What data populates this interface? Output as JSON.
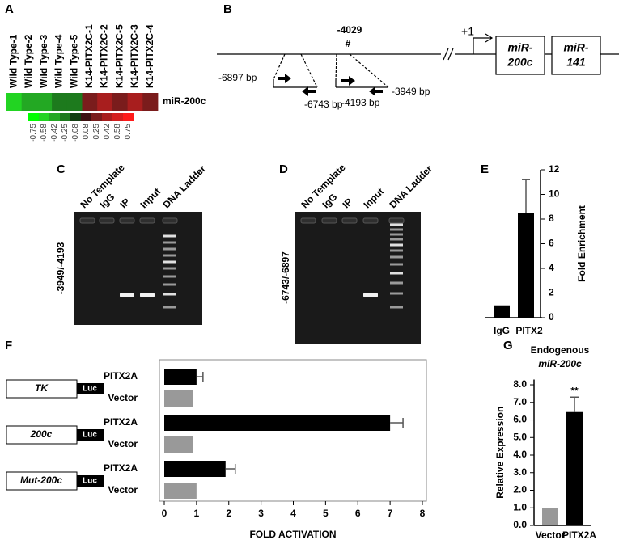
{
  "panel_labels": [
    "A",
    "B",
    "C",
    "D",
    "E",
    "F",
    "G"
  ],
  "diagram": {
    "site_label": "-4029",
    "site_marker": "#",
    "tss": "+1",
    "genes": [
      [
        "miR-",
        "200c"
      ],
      [
        "miR-",
        "141"
      ]
    ],
    "primers": [
      "-6897 bp",
      "-6743 bp",
      "-4193 bp",
      "-3949 bp"
    ]
  },
  "gels": [
    {
      "lanes": [
        "No Template",
        "IgG",
        "IP",
        "Input",
        "DNA Ladder"
      ],
      "primer_label": "-3949/-4193"
    },
    {
      "lanes": [
        "No Template",
        "IgG",
        "IP",
        "Input",
        "DNA Ladder"
      ],
      "primer_label": "-6743/-6897"
    }
  ],
  "chart_data": [
    {
      "type": "heatmap",
      "columns": [
        "Wild Type-1",
        "Wild Type-2",
        "Wild Type-3",
        "Wild Type-4",
        "Wild Type-5",
        "K14-PITX2C-1",
        "K14-PITX2C-2",
        "K14-PITX2C-5",
        "K14-PITX2C-3",
        "K14-PITX2C-4"
      ],
      "row_label": "miR-200c",
      "values": [
        -0.5,
        -0.42,
        -0.42,
        -0.3,
        -0.25,
        0.3,
        0.42,
        0.3,
        0.42,
        0.25
      ],
      "colorbar_ticks": [
        -0.75,
        -0.58,
        -0.42,
        -0.25,
        -0.08,
        0.08,
        0.25,
        0.42,
        0.58,
        0.75
      ],
      "colorscale": [
        "#00ff00",
        "#22d422",
        "#23a823",
        "#1d7a1d",
        "#113d11",
        "#3d1111",
        "#7a1c1c",
        "#a81e1e",
        "#d41e1e",
        "#ff1a1a"
      ]
    },
    {
      "type": "bar",
      "categories": [
        "IgG",
        "PITX2"
      ],
      "values": [
        1,
        8.5
      ],
      "errors": [
        null,
        2.7
      ],
      "colors": [
        "#000000",
        "#000000"
      ],
      "ylabel": "Fold Enrichment",
      "yaxis_side": "right",
      "ylim": [
        0,
        12
      ],
      "yticks": [
        0,
        2,
        4,
        6,
        8,
        10,
        12
      ]
    },
    {
      "type": "barh",
      "categories": [
        "PITX2A",
        "Vector",
        "PITX2A",
        "Vector",
        "PITX2A",
        "Vector"
      ],
      "values": [
        1.0,
        0.9,
        7.0,
        0.9,
        1.9,
        1.0
      ],
      "errors": [
        0.2,
        null,
        0.4,
        null,
        0.3,
        null
      ],
      "colors": [
        "#000000",
        "#999999",
        "#000000",
        "#999999",
        "#000000",
        "#999999"
      ],
      "constructs": [
        {
          "name": "TK",
          "reporter": "Luc"
        },
        {
          "name": "200c",
          "reporter": "Luc"
        },
        {
          "name": "Mut-200c",
          "reporter": "Luc"
        }
      ],
      "xlabel": "FOLD ACTIVATION",
      "xlim": [
        0,
        8
      ],
      "xticks": [
        0,
        1,
        2,
        3,
        4,
        5,
        6,
        7,
        8
      ]
    },
    {
      "type": "bar",
      "title": "Endogenous",
      "subtitle": "miR-200c",
      "categories": [
        "Vector",
        "PITX2A"
      ],
      "values": [
        1.0,
        6.45
      ],
      "errors": [
        null,
        0.85
      ],
      "colors": [
        "#999999",
        "#000000"
      ],
      "annotation": "**",
      "ylabel": "Relative Expression",
      "yaxis_side": "left",
      "ylim": [
        0,
        8.3
      ],
      "yticks": [
        {
          "value": 0,
          "label": "0.0"
        },
        {
          "value": 1,
          "label": "1.0"
        },
        {
          "value": 2,
          "label": "2.0"
        },
        {
          "value": 3,
          "label": "3.0"
        },
        {
          "value": 4,
          "label": "4.0"
        },
        {
          "value": 5,
          "label": "5.0"
        },
        {
          "value": 6,
          "label": "6.0"
        },
        {
          "value": 7,
          "label": "7.0"
        },
        {
          "value": 8,
          "label": "8.0"
        }
      ]
    }
  ]
}
